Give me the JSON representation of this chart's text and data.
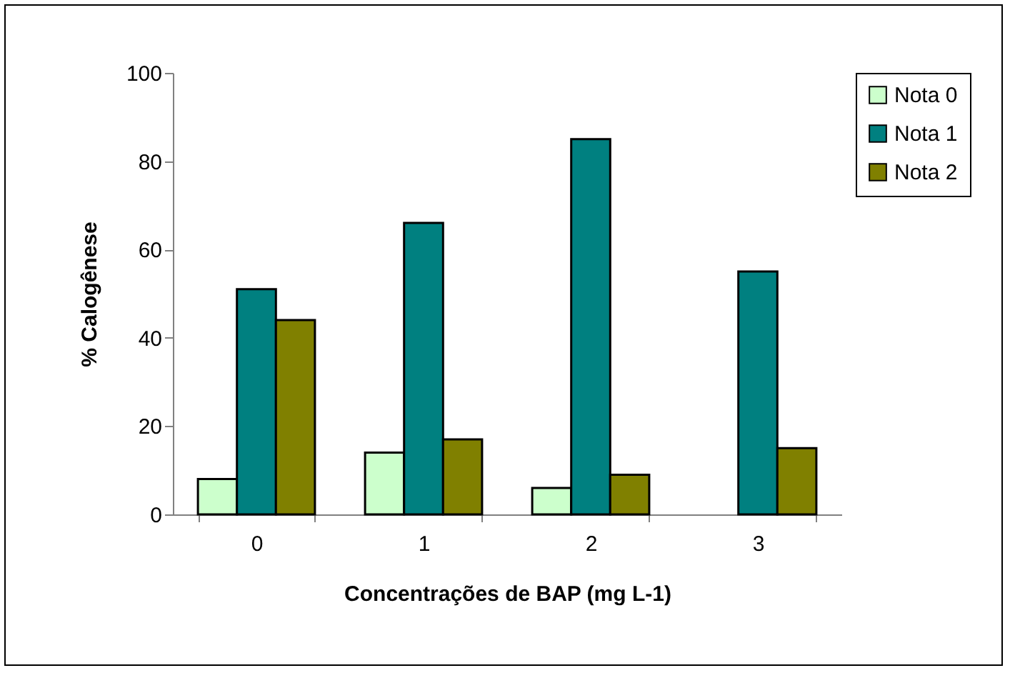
{
  "chart_data": {
    "type": "bar",
    "xlabel": "Concentrações de BAP (mg L-1)",
    "ylabel": "% Calogênese",
    "categories": [
      "0",
      "1",
      "2",
      "3"
    ],
    "series": [
      {
        "name": "Nota 0",
        "color": "#ccffcc",
        "values": [
          8,
          14,
          6,
          null
        ]
      },
      {
        "name": "Nota 1",
        "color": "#008080",
        "values": [
          51,
          66,
          85,
          55
        ]
      },
      {
        "name": "Nota 2",
        "color": "#808000",
        "values": [
          44,
          17,
          9,
          15
        ]
      }
    ],
    "ylim": [
      0,
      100
    ],
    "yticks": [
      0,
      20,
      40,
      60,
      80,
      100
    ],
    "grid": false,
    "legend": "right"
  }
}
